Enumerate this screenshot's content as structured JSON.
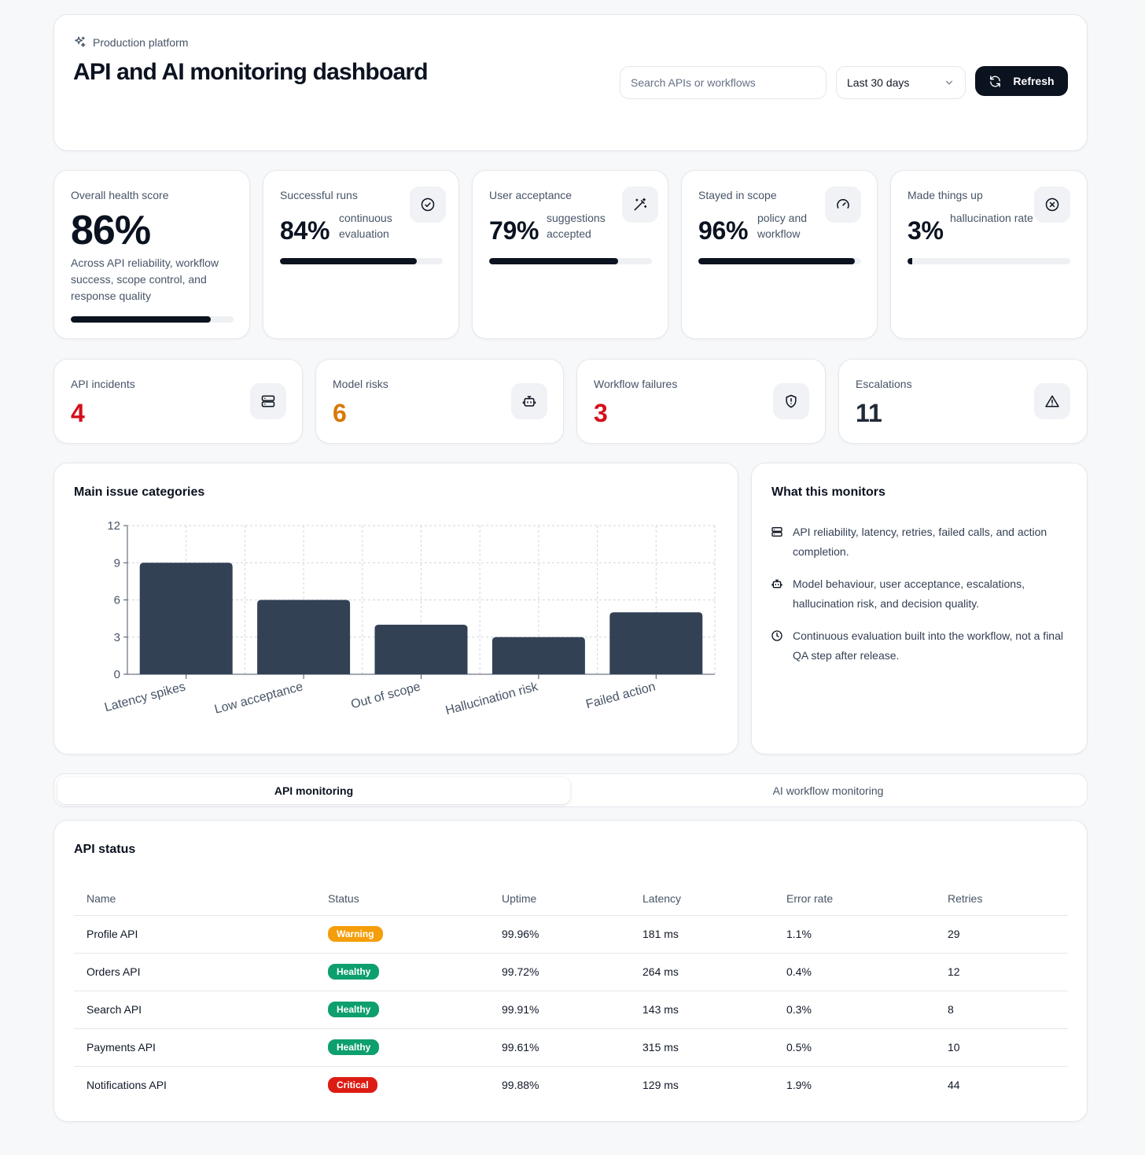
{
  "header": {
    "eyebrow": "Production platform",
    "title": "API and AI monitoring dashboard",
    "search_placeholder": "Search APIs or workflows",
    "range": "Last 30 days",
    "refresh_label": "Refresh"
  },
  "health": {
    "label": "Overall health score",
    "value": "86%",
    "progress": 0.86,
    "description": "Across API reliability, workflow success, scope control, and response quality"
  },
  "kpis": [
    {
      "label": "Successful runs",
      "value": "84%",
      "sub": "continuous evaluation",
      "progress": 0.84,
      "icon": "check-circle-icon"
    },
    {
      "label": "User acceptance",
      "value": "79%",
      "sub": "suggestions accepted",
      "progress": 0.79,
      "icon": "magic-wand-icon"
    },
    {
      "label": "Stayed in scope",
      "value": "96%",
      "sub": "policy and workflow",
      "progress": 0.96,
      "icon": "gauge-icon"
    },
    {
      "label": "Made things up",
      "value": "3%",
      "sub": "hallucination rate",
      "progress": 0.03,
      "icon": "x-circle-icon"
    }
  ],
  "stats": [
    {
      "label": "API incidents",
      "value": "4",
      "color": "#d40f1b",
      "icon": "server-icon"
    },
    {
      "label": "Model risks",
      "value": "6",
      "color": "#d97706",
      "icon": "robot-icon"
    },
    {
      "label": "Workflow failures",
      "value": "3",
      "color": "#d40f1b",
      "icon": "shield-alert-icon"
    },
    {
      "label": "Escalations",
      "value": "11",
      "color": "#1f2937",
      "icon": "warning-triangle-icon"
    }
  ],
  "chart_section": {
    "title": "Main issue categories"
  },
  "chart_data": {
    "type": "bar",
    "categories": [
      "Latency spikes",
      "Low acceptance",
      "Out of scope",
      "Hallucination risk",
      "Failed action"
    ],
    "values": [
      9,
      6,
      4,
      3,
      5
    ],
    "yticks": [
      0,
      3,
      6,
      9,
      12
    ],
    "ylim": [
      0,
      12
    ],
    "grid": true,
    "bar_color": "#334155"
  },
  "monitors": {
    "title": "What this monitors",
    "items": [
      {
        "text": "API reliability, latency, retries, failed calls, and action completion.",
        "icon": "server-icon"
      },
      {
        "text": "Model behaviour, user acceptance, escalations, hallucination risk, and decision quality.",
        "icon": "robot-icon"
      },
      {
        "text": "Continuous evaluation built into the workflow, not a final QA step after release.",
        "icon": "clock-icon"
      }
    ]
  },
  "tabs": {
    "active": "API monitoring",
    "inactive": "AI workflow monitoring"
  },
  "api_table": {
    "title": "API status",
    "columns": [
      "Name",
      "Status",
      "Uptime",
      "Latency",
      "Error rate",
      "Retries"
    ],
    "rows": [
      {
        "name": "Profile API",
        "status": "Warning",
        "status_color": "#f59e0b",
        "uptime": "99.96%",
        "latency": "181 ms",
        "error_rate": "1.1%",
        "retries": "29"
      },
      {
        "name": "Orders API",
        "status": "Healthy",
        "status_color": "#0e9f6e",
        "uptime": "99.72%",
        "latency": "264 ms",
        "error_rate": "0.4%",
        "retries": "12"
      },
      {
        "name": "Search API",
        "status": "Healthy",
        "status_color": "#0e9f6e",
        "uptime": "99.91%",
        "latency": "143 ms",
        "error_rate": "0.3%",
        "retries": "8"
      },
      {
        "name": "Payments API",
        "status": "Healthy",
        "status_color": "#0e9f6e",
        "uptime": "99.61%",
        "latency": "315 ms",
        "error_rate": "0.5%",
        "retries": "10"
      },
      {
        "name": "Notifications API",
        "status": "Critical",
        "status_color": "#dc1c13",
        "uptime": "99.88%",
        "latency": "129 ms",
        "error_rate": "1.9%",
        "retries": "44"
      }
    ]
  }
}
